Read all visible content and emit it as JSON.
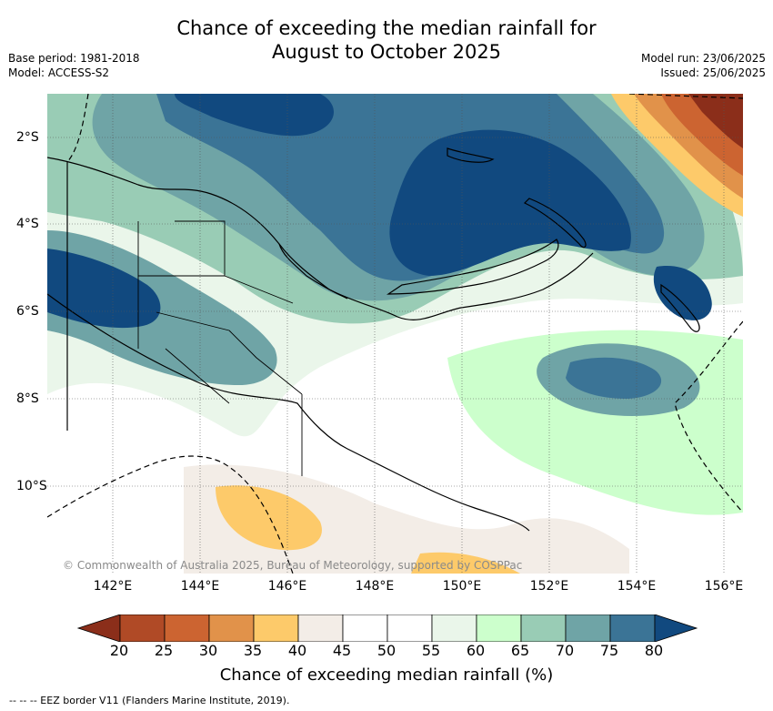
{
  "title_line1": "Chance of exceeding the median rainfall for",
  "title_line2": "August to October 2025",
  "meta_left": {
    "base_period": "Base period: 1981-2018",
    "model": "Model: ACCESS-S2"
  },
  "meta_right": {
    "model_run": "Model run: 23/06/2025",
    "issued": "Issued: 25/06/2025"
  },
  "copyright": "© Commonwealth of Australia 2025, Bureau of Meteorology, supported by COSPPac",
  "lon_labels": [
    "142°E",
    "144°E",
    "146°E",
    "148°E",
    "150°E",
    "152°E",
    "154°E",
    "156°E"
  ],
  "lat_labels": [
    "2°S",
    "4°S",
    "6°S",
    "8°S",
    "10°S"
  ],
  "colorbar": {
    "ticks": [
      "20",
      "25",
      "30",
      "35",
      "40",
      "45",
      "50",
      "55",
      "60",
      "65",
      "70",
      "75",
      "80"
    ],
    "colors": [
      "#8b2e1a",
      "#b04a26",
      "#cc6431",
      "#e1924a",
      "#fdca6a",
      "#f3ede7",
      "#ffffff",
      "#ffffff",
      "#eaf6ea",
      "#ccffcc",
      "#99ccb5",
      "#6fa4a6",
      "#3b7496",
      "#11497f"
    ],
    "label": "Chance of exceeding median rainfall (%)"
  },
  "footer": "--  --  -- EEZ border V11 (Flanders Marine Institute, 2019)."
}
